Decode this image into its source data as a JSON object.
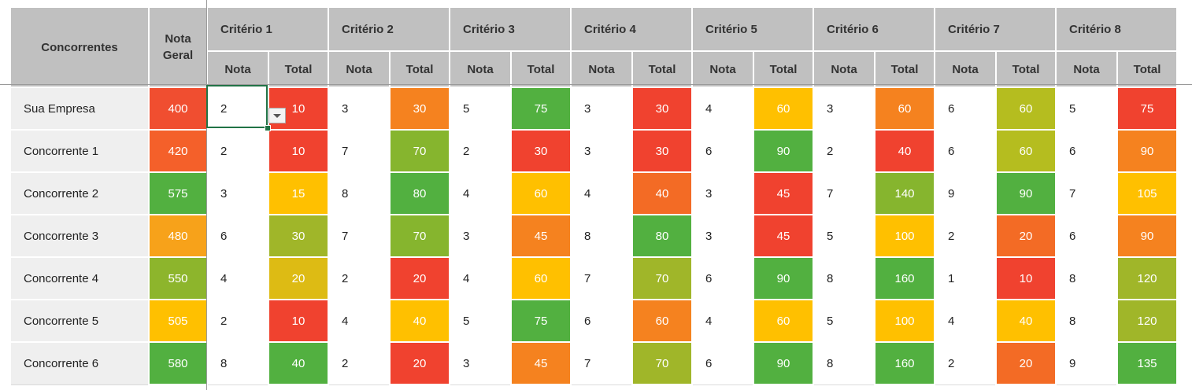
{
  "header": {
    "competitors_label": "Concorrentes",
    "overall_score_label": "Nota Geral",
    "criteria": [
      "Critério 1",
      "Critério 2",
      "Critério 3",
      "Critério 4",
      "Critério 5",
      "Critério 6",
      "Critério 7",
      "Critério 8"
    ],
    "score_label": "Nota",
    "total_label": "Total"
  },
  "rows": [
    {
      "name": "Sua Empresa",
      "nota_geral": "400",
      "ng_color": "#f04e30",
      "cells": [
        {
          "nota": "2",
          "total": "10",
          "color": "#f0422f"
        },
        {
          "nota": "3",
          "total": "30",
          "color": "#f5821f"
        },
        {
          "nota": "5",
          "total": "75",
          "color": "#52b040"
        },
        {
          "nota": "3",
          "total": "30",
          "color": "#f0422f"
        },
        {
          "nota": "4",
          "total": "60",
          "color": "#ffc000"
        },
        {
          "nota": "3",
          "total": "60",
          "color": "#f5821f"
        },
        {
          "nota": "6",
          "total": "60",
          "color": "#b5bd1f"
        },
        {
          "nota": "5",
          "total": "75",
          "color": "#f0422f"
        }
      ]
    },
    {
      "name": "Concorrente 1",
      "nota_geral": "420",
      "ng_color": "#f4602a",
      "cells": [
        {
          "nota": "2",
          "total": "10",
          "color": "#f0422f"
        },
        {
          "nota": "7",
          "total": "70",
          "color": "#86b52e"
        },
        {
          "nota": "2",
          "total": "30",
          "color": "#f0422f"
        },
        {
          "nota": "3",
          "total": "30",
          "color": "#f0422f"
        },
        {
          "nota": "6",
          "total": "90",
          "color": "#52b040"
        },
        {
          "nota": "2",
          "total": "40",
          "color": "#f0422f"
        },
        {
          "nota": "6",
          "total": "60",
          "color": "#b5bd1f"
        },
        {
          "nota": "6",
          "total": "90",
          "color": "#f5821f"
        }
      ]
    },
    {
      "name": "Concorrente 2",
      "nota_geral": "575",
      "ng_color": "#52b040",
      "cells": [
        {
          "nota": "3",
          "total": "15",
          "color": "#ffc000"
        },
        {
          "nota": "8",
          "total": "80",
          "color": "#52b040"
        },
        {
          "nota": "4",
          "total": "60",
          "color": "#ffc000"
        },
        {
          "nota": "4",
          "total": "40",
          "color": "#f36b25"
        },
        {
          "nota": "3",
          "total": "45",
          "color": "#f0422f"
        },
        {
          "nota": "7",
          "total": "140",
          "color": "#86b52e"
        },
        {
          "nota": "9",
          "total": "90",
          "color": "#52b040"
        },
        {
          "nota": "7",
          "total": "105",
          "color": "#ffc000"
        }
      ]
    },
    {
      "name": "Concorrente 3",
      "nota_geral": "480",
      "ng_color": "#f7a21a",
      "cells": [
        {
          "nota": "6",
          "total": "30",
          "color": "#a0b629"
        },
        {
          "nota": "7",
          "total": "70",
          "color": "#86b52e"
        },
        {
          "nota": "3",
          "total": "45",
          "color": "#f5821f"
        },
        {
          "nota": "8",
          "total": "80",
          "color": "#52b040"
        },
        {
          "nota": "3",
          "total": "45",
          "color": "#f0422f"
        },
        {
          "nota": "5",
          "total": "100",
          "color": "#ffc000"
        },
        {
          "nota": "2",
          "total": "20",
          "color": "#f36b25"
        },
        {
          "nota": "6",
          "total": "90",
          "color": "#f5821f"
        }
      ]
    },
    {
      "name": "Concorrente 4",
      "nota_geral": "550",
      "ng_color": "#8db52c",
      "cells": [
        {
          "nota": "4",
          "total": "20",
          "color": "#ddbb14"
        },
        {
          "nota": "2",
          "total": "20",
          "color": "#f0422f"
        },
        {
          "nota": "4",
          "total": "60",
          "color": "#ffc000"
        },
        {
          "nota": "7",
          "total": "70",
          "color": "#a0b629"
        },
        {
          "nota": "6",
          "total": "90",
          "color": "#52b040"
        },
        {
          "nota": "8",
          "total": "160",
          "color": "#52b040"
        },
        {
          "nota": "1",
          "total": "10",
          "color": "#f0422f"
        },
        {
          "nota": "8",
          "total": "120",
          "color": "#a0b629"
        }
      ]
    },
    {
      "name": "Concorrente 5",
      "nota_geral": "505",
      "ng_color": "#ffc000",
      "cells": [
        {
          "nota": "2",
          "total": "10",
          "color": "#f0422f"
        },
        {
          "nota": "4",
          "total": "40",
          "color": "#ffc000"
        },
        {
          "nota": "5",
          "total": "75",
          "color": "#52b040"
        },
        {
          "nota": "6",
          "total": "60",
          "color": "#f5821f"
        },
        {
          "nota": "4",
          "total": "60",
          "color": "#ffc000"
        },
        {
          "nota": "5",
          "total": "100",
          "color": "#ffc000"
        },
        {
          "nota": "4",
          "total": "40",
          "color": "#ffc000"
        },
        {
          "nota": "8",
          "total": "120",
          "color": "#a0b629"
        }
      ]
    },
    {
      "name": "Concorrente 6",
      "nota_geral": "580",
      "ng_color": "#52b040",
      "cells": [
        {
          "nota": "8",
          "total": "40",
          "color": "#52b040"
        },
        {
          "nota": "2",
          "total": "20",
          "color": "#f0422f"
        },
        {
          "nota": "3",
          "total": "45",
          "color": "#f5821f"
        },
        {
          "nota": "7",
          "total": "70",
          "color": "#a0b629"
        },
        {
          "nota": "6",
          "total": "90",
          "color": "#52b040"
        },
        {
          "nota": "8",
          "total": "160",
          "color": "#52b040"
        },
        {
          "nota": "2",
          "total": "20",
          "color": "#f36b25"
        },
        {
          "nota": "9",
          "total": "135",
          "color": "#52b040"
        }
      ]
    }
  ]
}
